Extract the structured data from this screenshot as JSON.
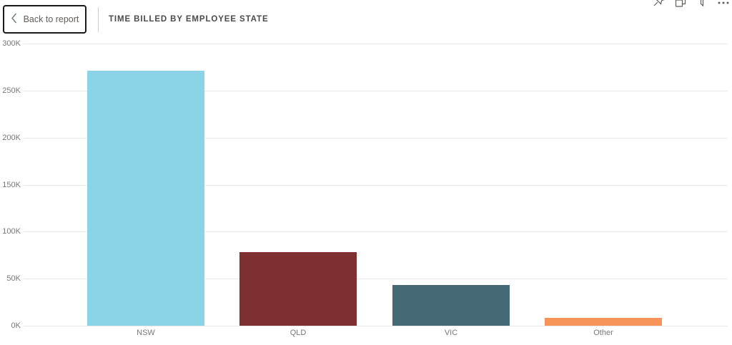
{
  "header": {
    "back_button_label": "Back to report",
    "title": "TIME BILLED BY EMPLOYEE STATE"
  },
  "toolbar_icons": [
    {
      "name": "pin-icon"
    },
    {
      "name": "copy-icon"
    },
    {
      "name": "filter-icon"
    },
    {
      "name": "more-options-icon"
    }
  ],
  "colors": {
    "background": "#FFFFFF",
    "gridline": "#E8E8E8",
    "axis_label": "#777777",
    "title_text": "#4A4A4A",
    "button_border": "#1B1A19",
    "button_text": "#605E5C",
    "icon": "#605E5C",
    "divider": "#D0CECC"
  },
  "chart_data": {
    "type": "bar",
    "title": "TIME BILLED BY EMPLOYEE STATE",
    "categories": [
      "NSW",
      "QLD",
      "VIC",
      "Other"
    ],
    "values": [
      271000,
      78000,
      43000,
      8000
    ],
    "bar_colors": [
      "#8BD3E6",
      "#7E2F2F",
      "#456975",
      "#F79459"
    ],
    "xlabel": "",
    "ylabel": "",
    "ylim": [
      0,
      300000
    ],
    "y_tick_values": [
      0,
      50000,
      100000,
      150000,
      200000,
      250000,
      300000
    ],
    "y_tick_labels": [
      "0K",
      "50K",
      "100K",
      "150K",
      "200K",
      "250K",
      "300K"
    ],
    "grid": true,
    "legend": "none"
  }
}
